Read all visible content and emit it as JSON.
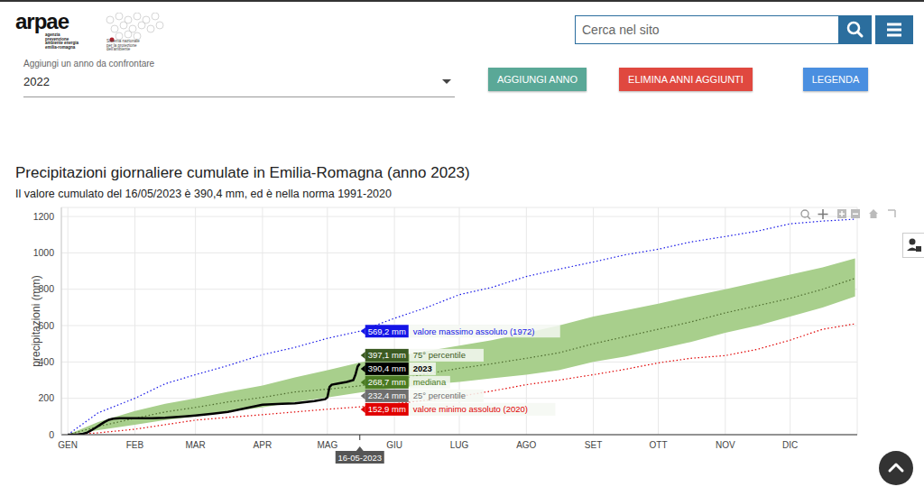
{
  "page": {
    "logo": "arpae",
    "logo_subtitle": [
      "agenzia",
      "prevenzione",
      "ambiente energia",
      "emilia-romagna"
    ],
    "snpa": [
      "Sistema nazionale",
      "per la protezione",
      "dell'ambiente"
    ],
    "search_placeholder": "Cerca nel sito",
    "year_select_label": "Aggiungi un anno da confrontare",
    "year_select_value": "2022",
    "buttons": [
      {
        "text": "AGGIUNGI ANNO",
        "color": "#5aa897"
      },
      {
        "text": "ELIMINA ANNI AGGIUNTI",
        "color": "#e0483f"
      },
      {
        "text": "LEGENDA",
        "color": "#4a8fe0"
      }
    ]
  },
  "chart_data": {
    "type": "line",
    "title": "Precipitazioni giornaliere cumulate in Emilia-Romagna (anno 2023)",
    "subtitle": "Il valore cumulato del 16/05/2023 è 390,4 mm, ed è nella norma 1991-2020",
    "y_label": "precipitazioni (mm)",
    "grid": true,
    "xlim": [
      -2,
      366
    ],
    "xticks": [
      {
        "value": 1,
        "label": "GEN"
      },
      {
        "value": 32,
        "label": "FEB"
      },
      {
        "value": 60,
        "label": "MAR"
      },
      {
        "value": 91,
        "label": "APR"
      },
      {
        "value": 121,
        "label": "MAG"
      },
      {
        "value": 152,
        "label": "GIU"
      },
      {
        "value": 182,
        "label": "LUG"
      },
      {
        "value": 213,
        "label": "AGO"
      },
      {
        "value": 244,
        "label": "SET"
      },
      {
        "value": 274,
        "label": "OTT"
      },
      {
        "value": 305,
        "label": "NOV"
      },
      {
        "value": 335,
        "label": "DIC"
      }
    ],
    "ylim": [
      0,
      1250
    ],
    "yticks": [
      0,
      200,
      400,
      600,
      800,
      1000,
      1200
    ],
    "band": {
      "names": [
        "25° percentile",
        "75° percentile"
      ],
      "color": "#a8cf8c",
      "x": [
        1,
        15,
        32,
        46,
        60,
        75,
        91,
        106,
        121,
        136,
        152,
        167,
        182,
        197,
        213,
        228,
        244,
        259,
        274,
        289,
        305,
        320,
        335,
        350,
        365
      ],
      "lower": [
        0,
        25,
        55,
        80,
        100,
        125,
        150,
        180,
        205,
        232.4,
        255,
        275,
        290,
        310,
        330,
        355,
        400,
        430,
        470,
        510,
        560,
        600,
        650,
        700,
        760
      ],
      "upper": [
        0,
        70,
        130,
        170,
        200,
        235,
        270,
        315,
        355,
        397.1,
        430,
        460,
        490,
        520,
        560,
        600,
        650,
        685,
        720,
        760,
        800,
        840,
        880,
        920,
        970
      ]
    },
    "series": [
      {
        "name": "valore massimo assoluto (1972)",
        "color": "#1414e6",
        "line_style": "dotted",
        "x": [
          1,
          15,
          32,
          46,
          60,
          75,
          91,
          106,
          121,
          136,
          152,
          167,
          182,
          197,
          213,
          228,
          244,
          259,
          274,
          289,
          305,
          320,
          335,
          350,
          365
        ],
        "values": [
          0,
          120,
          200,
          280,
          330,
          380,
          440,
          480,
          530,
          569.2,
          640,
          700,
          770,
          810,
          870,
          910,
          950,
          990,
          1020,
          1060,
          1090,
          1120,
          1160,
          1175,
          1185
        ]
      },
      {
        "name": "valore minimo assoluto (2020)",
        "color": "#e00000",
        "line_style": "dotted",
        "x": [
          1,
          15,
          32,
          46,
          60,
          75,
          91,
          106,
          121,
          136,
          152,
          167,
          182,
          197,
          213,
          228,
          244,
          259,
          274,
          289,
          305,
          320,
          335,
          350,
          365
        ],
        "values": [
          0,
          10,
          30,
          55,
          80,
          95,
          110,
          125,
          140,
          152.9,
          170,
          190,
          210,
          240,
          275,
          300,
          330,
          360,
          395,
          420,
          435,
          470,
          520,
          580,
          610
        ]
      },
      {
        "name": "mediana",
        "color": "#4d6b2e",
        "line_style": "dotted",
        "x": [
          1,
          15,
          32,
          46,
          60,
          75,
          91,
          106,
          121,
          136,
          152,
          167,
          182,
          197,
          213,
          228,
          244,
          259,
          274,
          289,
          305,
          320,
          335,
          350,
          365
        ],
        "values": [
          0,
          45,
          90,
          125,
          150,
          180,
          205,
          235,
          250,
          268.7,
          300,
          335,
          365,
          390,
          420,
          450,
          500,
          540,
          580,
          620,
          670,
          710,
          750,
          800,
          860
        ]
      },
      {
        "name": "2023",
        "color": "#000000",
        "line_style": "solid",
        "x": [
          1,
          5,
          8,
          10,
          12,
          14,
          16,
          18,
          20,
          22,
          25,
          32,
          40,
          46,
          55,
          60,
          68,
          75,
          85,
          91,
          100,
          106,
          115,
          120,
          121,
          122,
          123,
          126,
          130,
          133,
          134,
          135,
          136
        ],
        "values": [
          0,
          0,
          5,
          12,
          25,
          40,
          55,
          70,
          82,
          88,
          90,
          90,
          91,
          93,
          100,
          105,
          115,
          125,
          150,
          165,
          170,
          172,
          185,
          195,
          205,
          262,
          275,
          282,
          290,
          300,
          330,
          375,
          390.4
        ]
      }
    ],
    "hover": {
      "x": 136,
      "x_label": "16-05-2023",
      "items": [
        {
          "name": "valore massimo assoluto (1972)",
          "value": 569.2,
          "label": "569,2 mm",
          "color": "#1414e6"
        },
        {
          "name": "75° percentile",
          "value": 397.1,
          "label": "397,1 mm",
          "color": "#3b5a22"
        },
        {
          "name": "2023",
          "value": 390.4,
          "label": "390,4 mm",
          "color": "#000000"
        },
        {
          "name": "mediana",
          "value": 268.7,
          "label": "268,7 mm",
          "color": "#4a7a22"
        },
        {
          "name": "25° percentile",
          "value": 232.4,
          "label": "232,4 mm",
          "color": "#6e6e6e"
        },
        {
          "name": "valore minimo assoluto (2020)",
          "value": 152.9,
          "label": "152,9 mm",
          "color": "#e00000"
        }
      ]
    }
  }
}
